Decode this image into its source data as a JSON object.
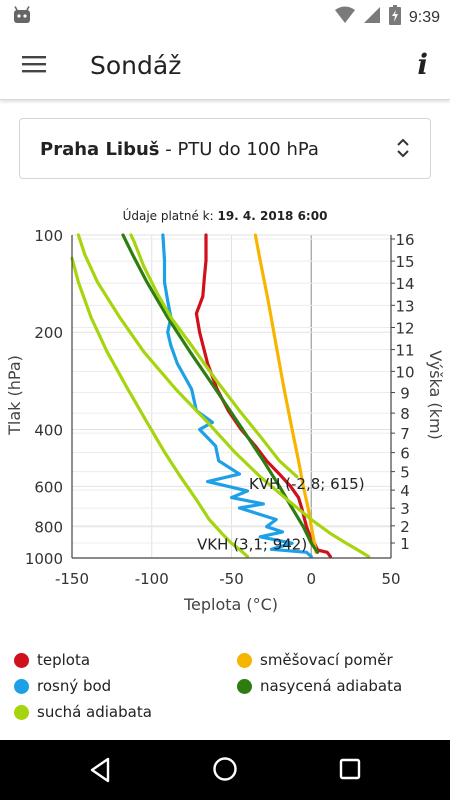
{
  "status": {
    "time": "9:39",
    "battery_level": 0.85
  },
  "app": {
    "title": "Sondáž"
  },
  "selector": {
    "station": "Praha Libuš",
    "separator": " - ",
    "product": "PTU do 100 hPa"
  },
  "chart_data": {
    "type": "line",
    "subtitle_prefix": "Údaje platné k: ",
    "subtitle_value": "19. 4. 2018 6:00",
    "xlabel": "Teplota (°C)",
    "ylabel": "Tlak (hPa)",
    "y2label": "Výška (km)",
    "xlim": [
      -150,
      50
    ],
    "x_ticks": [
      "-150",
      "-100",
      "-50",
      "0",
      "50"
    ],
    "y_ticks": [
      "100",
      "200",
      "400",
      "600",
      "800",
      "1000"
    ],
    "y2_ticks": [
      "1",
      "2",
      "3",
      "4",
      "5",
      "6",
      "7",
      "8",
      "9",
      "10",
      "11",
      "12",
      "13",
      "14",
      "15",
      "16"
    ],
    "grid": true,
    "annotations": [
      {
        "text": "VKH (3,1; 942)",
        "x": 3.1,
        "p": 942
      },
      {
        "text": "KVH (-2,8; 615)",
        "x": -2.8,
        "p": 615
      }
    ],
    "series": [
      {
        "name": "teplota",
        "color": "#d0101c",
        "points": [
          [
            12,
            990
          ],
          [
            10,
            960
          ],
          [
            4,
            945
          ],
          [
            2,
            900
          ],
          [
            -1,
            850
          ],
          [
            -3,
            800
          ],
          [
            -6,
            700
          ],
          [
            -8,
            650
          ],
          [
            -13,
            600
          ],
          [
            -20,
            550
          ],
          [
            -28,
            500
          ],
          [
            -35,
            450
          ],
          [
            -44,
            400
          ],
          [
            -52,
            350
          ],
          [
            -59,
            300
          ],
          [
            -65,
            250
          ],
          [
            -70,
            200
          ],
          [
            -72,
            175
          ],
          [
            -68,
            155
          ],
          [
            -67,
            135
          ],
          [
            -66,
            120
          ],
          [
            -66,
            110
          ],
          [
            -66,
            100
          ]
        ]
      },
      {
        "name": "rosný bod",
        "color": "#1da0e6",
        "points": [
          [
            0,
            990
          ],
          [
            -3,
            960
          ],
          [
            -25,
            940
          ],
          [
            -12,
            900
          ],
          [
            -32,
            860
          ],
          [
            -18,
            830
          ],
          [
            -28,
            800
          ],
          [
            -22,
            760
          ],
          [
            -45,
            700
          ],
          [
            -30,
            680
          ],
          [
            -50,
            650
          ],
          [
            -40,
            620
          ],
          [
            -65,
            580
          ],
          [
            -45,
            550
          ],
          [
            -58,
            500
          ],
          [
            -60,
            450
          ],
          [
            -70,
            400
          ],
          [
            -62,
            380
          ],
          [
            -72,
            350
          ],
          [
            -75,
            300
          ],
          [
            -84,
            250
          ],
          [
            -88,
            220
          ],
          [
            -90,
            200
          ],
          [
            -88,
            180
          ],
          [
            -90,
            160
          ],
          [
            -92,
            140
          ],
          [
            -92,
            120
          ],
          [
            -93,
            100
          ]
        ]
      },
      {
        "name": "směšovací poměr",
        "color": "#f7b500",
        "points": [
          [
            3,
            960
          ],
          [
            2,
            900
          ],
          [
            0,
            800
          ],
          [
            -2,
            700
          ],
          [
            -5,
            600
          ],
          [
            -8,
            500
          ],
          [
            -12,
            400
          ],
          [
            -17,
            300
          ],
          [
            -22,
            220
          ],
          [
            -27,
            160
          ],
          [
            -32,
            120
          ],
          [
            -35,
            100
          ]
        ]
      },
      {
        "name": "nasycená adiabata",
        "color": "#2e7d11",
        "points": [
          [
            4,
            960
          ],
          [
            0,
            900
          ],
          [
            -5,
            800
          ],
          [
            -12,
            700
          ],
          [
            -20,
            600
          ],
          [
            -30,
            500
          ],
          [
            -43,
            400
          ],
          [
            -60,
            300
          ],
          [
            -76,
            230
          ],
          [
            -90,
            180
          ],
          [
            -103,
            140
          ],
          [
            -112,
            115
          ],
          [
            -118,
            100
          ]
        ]
      },
      {
        "name": "suchá adiabata",
        "color": "#a6d40e",
        "points": [
          [
            36,
            990
          ],
          [
            30,
            950
          ],
          [
            22,
            900
          ],
          [
            12,
            840
          ],
          [
            0,
            760
          ],
          [
            -15,
            660
          ],
          [
            -32,
            560
          ],
          [
            -48,
            470
          ],
          [
            -65,
            380
          ],
          [
            -85,
            300
          ],
          [
            -105,
            230
          ],
          [
            -120,
            180
          ],
          [
            -134,
            140
          ],
          [
            -142,
            115
          ],
          [
            -146,
            100
          ]
        ]
      },
      {
        "name": "suchá adiabata",
        "color": "#a6d40e",
        "points": [
          [
            -40,
            990
          ],
          [
            -44,
            950
          ],
          [
            -50,
            900
          ],
          [
            -56,
            840
          ],
          [
            -64,
            760
          ],
          [
            -72,
            660
          ],
          [
            -82,
            560
          ],
          [
            -92,
            470
          ],
          [
            -103,
            380
          ],
          [
            -115,
            300
          ],
          [
            -128,
            230
          ],
          [
            -138,
            180
          ],
          [
            -146,
            140
          ],
          [
            -150,
            118
          ]
        ]
      },
      {
        "name": "suchá adiabata",
        "color": "#a6d40e",
        "points": [
          [
            -9,
            560
          ],
          [
            -20,
            500
          ],
          [
            -32,
            420
          ],
          [
            -45,
            350
          ],
          [
            -60,
            280
          ],
          [
            -75,
            220
          ],
          [
            -88,
            180
          ],
          [
            -97,
            150
          ],
          [
            -105,
            125
          ],
          [
            -111,
            105
          ],
          [
            -113,
            100
          ]
        ]
      }
    ]
  },
  "legend": [
    {
      "label": "teplota",
      "color": "#d0101c"
    },
    {
      "label": "směšovací poměr",
      "color": "#f7b500"
    },
    {
      "label": "rosný bod",
      "color": "#1da0e6"
    },
    {
      "label": "nasycená adiabata",
      "color": "#2e7d11"
    },
    {
      "label": "suchá adiabata",
      "color": "#a6d40e"
    }
  ],
  "icons": {
    "status_left": "android-icon",
    "wifi": "wifi-icon",
    "signal": "signal-icon",
    "battery": "battery-charging-icon",
    "menu": "hamburger-menu-icon",
    "info": "info-icon",
    "dropdown": "unfold-icon",
    "nav_back": "back-triangle-icon",
    "nav_home": "home-circle-icon",
    "nav_recents": "recents-square-icon"
  }
}
